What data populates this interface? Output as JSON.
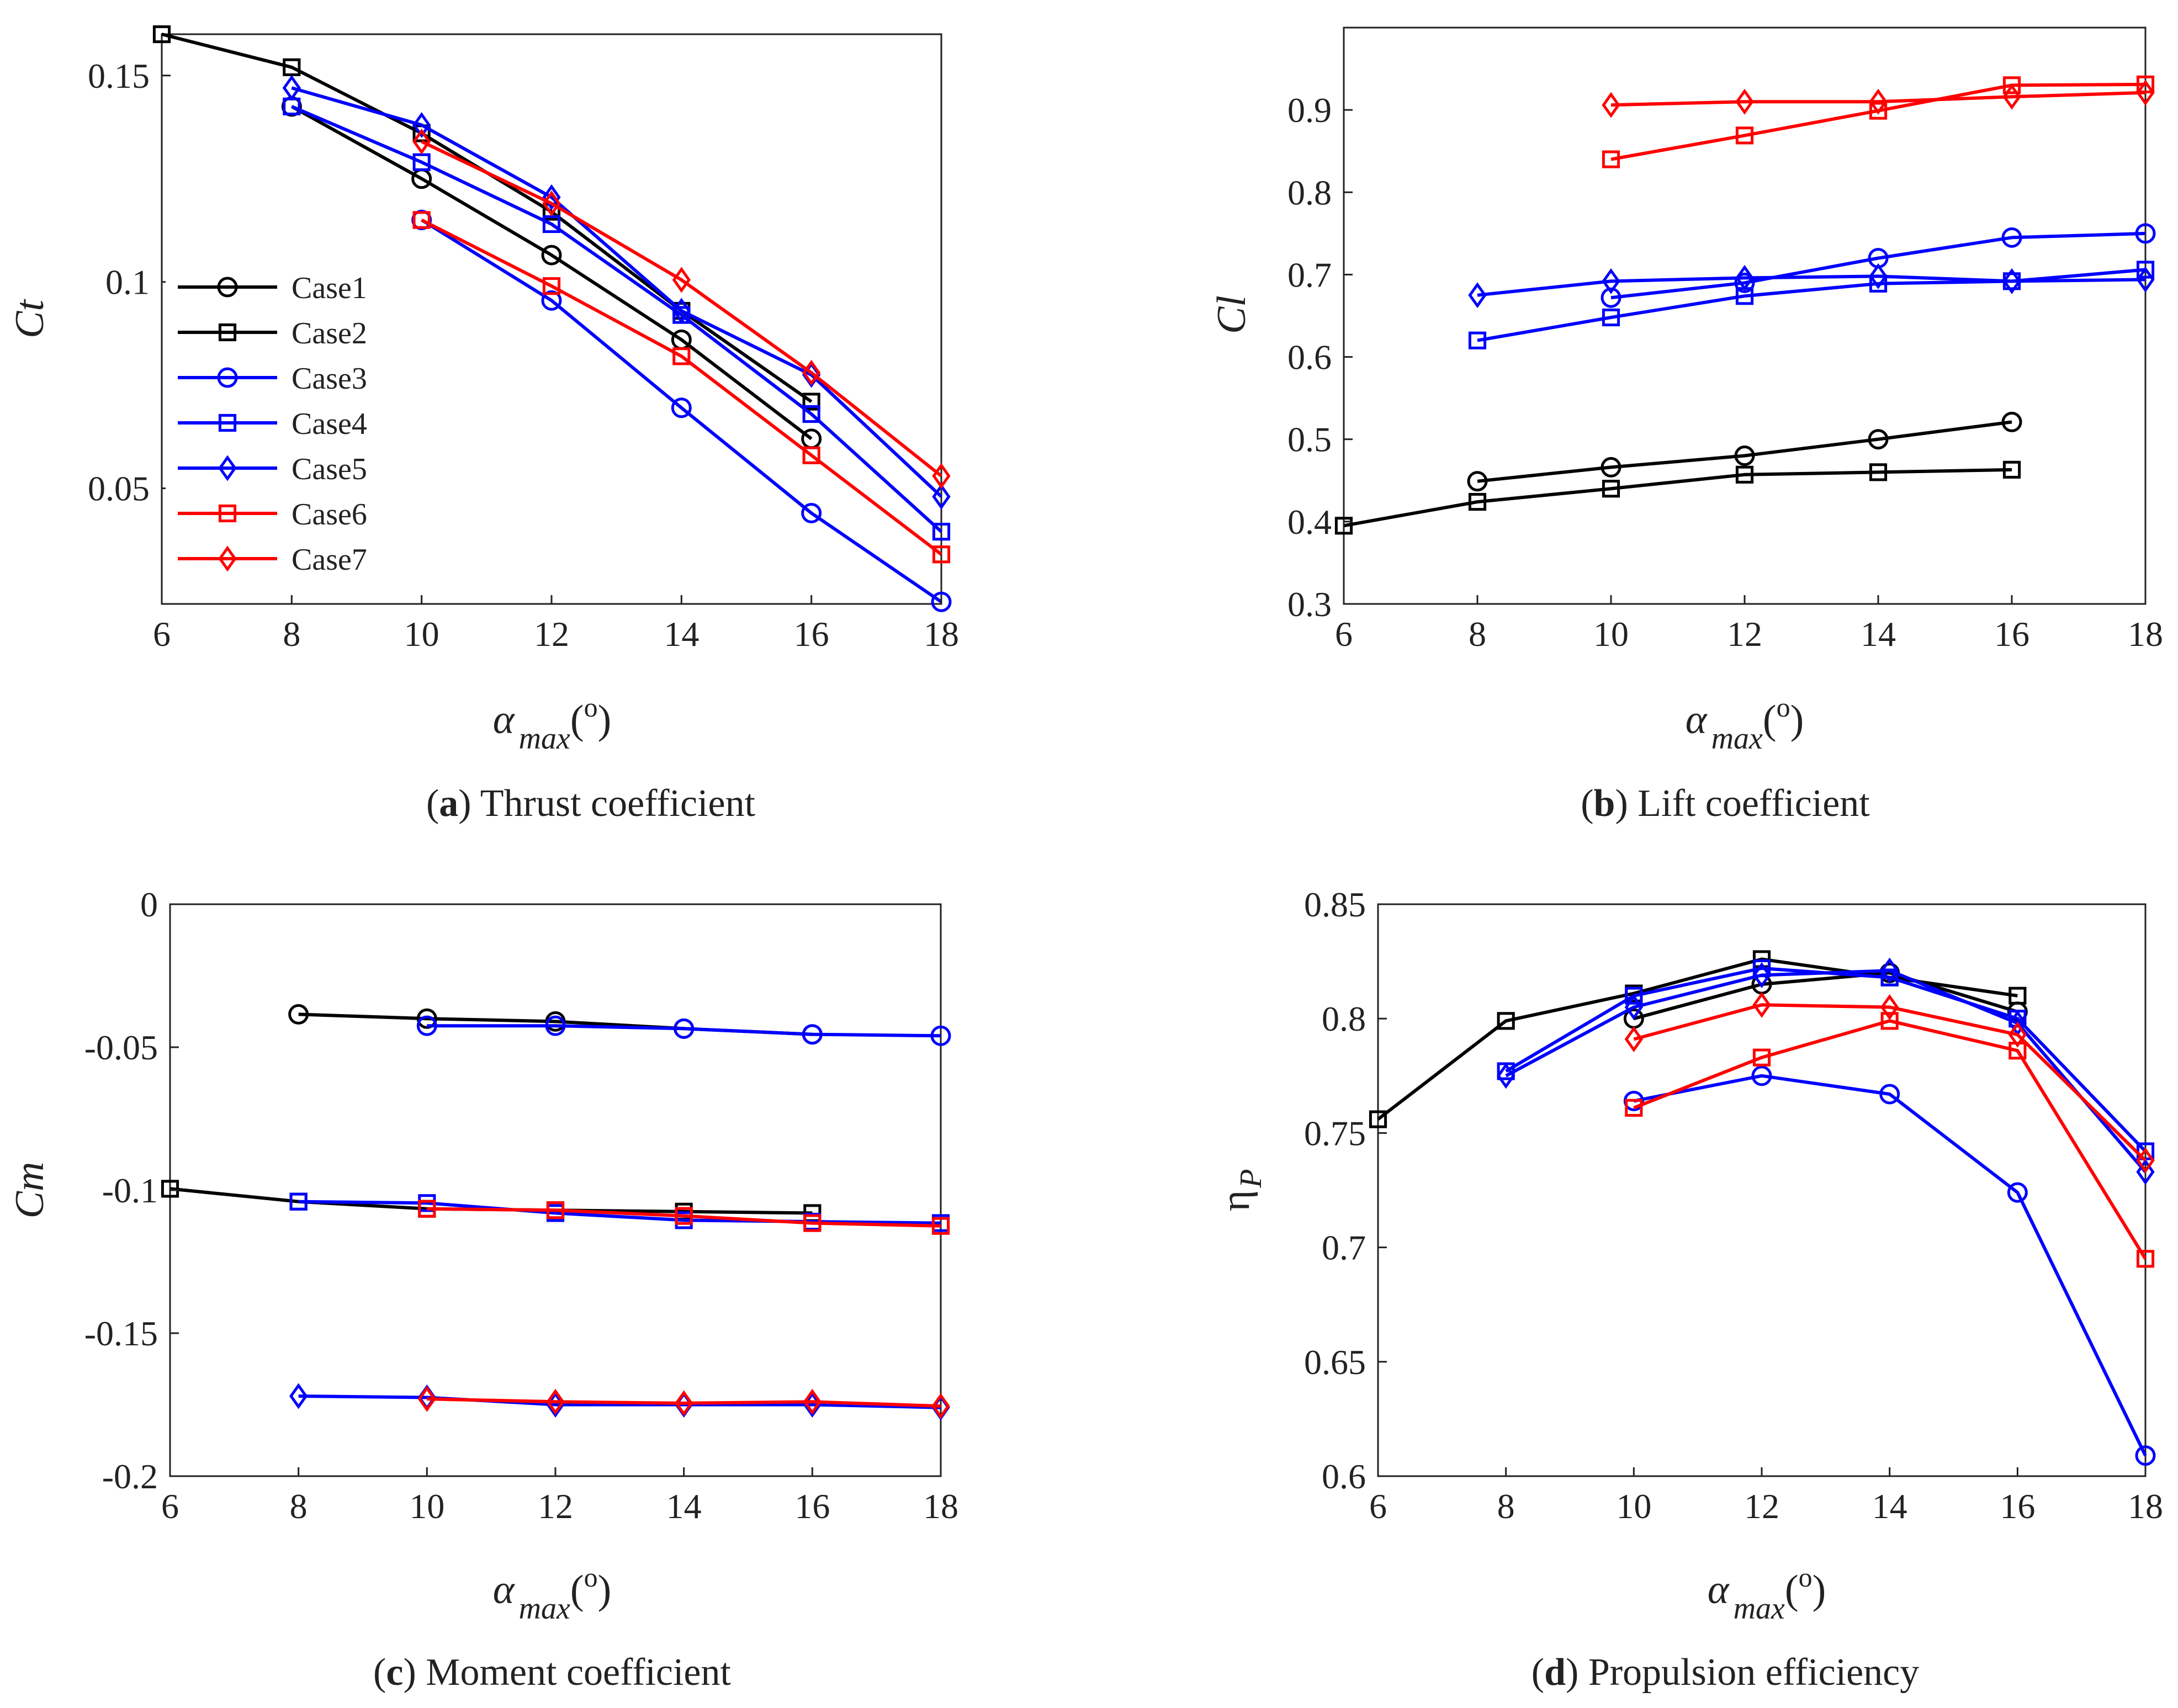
{
  "panels": [
    {
      "id": "a",
      "caption_letter": "a",
      "caption_text": " Thrust coefficient",
      "ylabel": "Ct",
      "xlabel_main": "α",
      "xlabel_sub": "max",
      "xlabel_paren": "(",
      "xlabel_sup": "o",
      "xlabel_close": ")",
      "xticks": [
        "6",
        "8",
        "10",
        "12",
        "14",
        "16",
        "18"
      ],
      "yticks": [
        "0.05",
        "0.1",
        "0.15"
      ]
    },
    {
      "id": "b",
      "caption_letter": "b",
      "caption_text": " Lift coefficient",
      "ylabel": "Cl",
      "xlabel_main": "α",
      "xlabel_sub": "max",
      "xlabel_paren": "(",
      "xlabel_sup": "o",
      "xlabel_close": ")",
      "xticks": [
        "6",
        "8",
        "10",
        "12",
        "14",
        "16",
        "18"
      ],
      "yticks": [
        "0.3",
        "0.4",
        "0.5",
        "0.6",
        "0.7",
        "0.8",
        "0.9"
      ]
    },
    {
      "id": "c",
      "caption_letter": "c",
      "caption_text": " Moment coefficient",
      "ylabel": "Cm",
      "xlabel_main": "α",
      "xlabel_sub": "max",
      "xlabel_paren": "(",
      "xlabel_sup": "o",
      "xlabel_close": ")",
      "xticks": [
        "6",
        "8",
        "10",
        "12",
        "14",
        "16",
        "18"
      ],
      "yticks": [
        "-0.2",
        "-0.15",
        "-0.1",
        "-0.05",
        "0"
      ]
    },
    {
      "id": "d",
      "caption_letter": "d",
      "caption_text": " Propulsion efficiency",
      "ylabel": "η",
      "ylabel_sub": "P",
      "xlabel_main": "α",
      "xlabel_sub": "max",
      "xlabel_paren": "(",
      "xlabel_sup": "o",
      "xlabel_close": ")",
      "xticks": [
        "6",
        "8",
        "10",
        "12",
        "14",
        "16",
        "18"
      ],
      "yticks": [
        "0.6",
        "0.65",
        "0.7",
        "0.75",
        "0.8",
        "0.85"
      ]
    }
  ],
  "legend": {
    "panel": "a",
    "entries": [
      "Case1",
      "Case2",
      "Case3",
      "Case4",
      "Case5",
      "Case6",
      "Case7"
    ]
  },
  "colors": {
    "black": "#000000",
    "blue": "#0000ff",
    "red": "#ff0000",
    "axis": "#222222"
  },
  "chart_data": [
    {
      "type": "line",
      "panel": "a",
      "xlabel": "α max (o)",
      "ylabel": "Ct",
      "xlim": [
        6,
        18
      ],
      "ylim": [
        0.022,
        0.16
      ],
      "x": [
        6,
        8,
        10,
        12,
        14,
        16,
        18
      ],
      "series": [
        {
          "name": "Case1",
          "color": "#000000",
          "marker": "circle",
          "x": [
            8,
            10,
            12,
            14,
            16
          ],
          "values": [
            0.1425,
            0.125,
            0.1065,
            0.086,
            0.062
          ]
        },
        {
          "name": "Case2",
          "color": "#000000",
          "marker": "square",
          "x": [
            6,
            8,
            10,
            12,
            14,
            16
          ],
          "values": [
            0.16,
            0.152,
            0.136,
            0.117,
            0.093,
            0.071
          ]
        },
        {
          "name": "Case3",
          "color": "#0000ff",
          "marker": "circle",
          "x": [
            10,
            12,
            14,
            16,
            18
          ],
          "values": [
            0.115,
            0.0955,
            0.0695,
            0.044,
            0.0225
          ]
        },
        {
          "name": "Case4",
          "color": "#0000ff",
          "marker": "square",
          "x": [
            8,
            10,
            12,
            14,
            16,
            18
          ],
          "values": [
            0.1425,
            0.129,
            0.114,
            0.092,
            0.068,
            0.0395
          ]
        },
        {
          "name": "Case5",
          "color": "#0000ff",
          "marker": "diamond",
          "x": [
            8,
            10,
            12,
            14,
            16,
            18
          ],
          "values": [
            0.147,
            0.138,
            0.1205,
            0.093,
            0.0775,
            0.048
          ]
        },
        {
          "name": "Case6",
          "color": "#ff0000",
          "marker": "square",
          "x": [
            10,
            12,
            14,
            16,
            18
          ],
          "values": [
            0.115,
            0.099,
            0.082,
            0.058,
            0.034
          ]
        },
        {
          "name": "Case7",
          "color": "#ff0000",
          "marker": "diamond",
          "x": [
            10,
            12,
            14,
            16,
            18
          ],
          "values": [
            0.134,
            0.119,
            0.1005,
            0.078,
            0.053
          ]
        }
      ]
    },
    {
      "type": "line",
      "panel": "b",
      "xlabel": "α max (o)",
      "ylabel": "Cl",
      "xlim": [
        6,
        18
      ],
      "ylim": [
        0.3,
        1.0
      ],
      "series": [
        {
          "name": "Case1",
          "color": "#000000",
          "marker": "circle",
          "x": [
            8,
            10,
            12,
            14,
            16
          ],
          "values": [
            0.449,
            0.466,
            0.48,
            0.5,
            0.521
          ]
        },
        {
          "name": "Case2",
          "color": "#000000",
          "marker": "square",
          "x": [
            6,
            8,
            10,
            12,
            14,
            16
          ],
          "values": [
            0.395,
            0.424,
            0.44,
            0.457,
            0.46,
            0.463
          ]
        },
        {
          "name": "Case3",
          "color": "#0000ff",
          "marker": "circle",
          "x": [
            10,
            12,
            14,
            16,
            18
          ],
          "values": [
            0.672,
            0.69,
            0.72,
            0.745,
            0.75
          ]
        },
        {
          "name": "Case4",
          "color": "#0000ff",
          "marker": "square",
          "x": [
            8,
            10,
            12,
            14,
            16,
            18
          ],
          "values": [
            0.62,
            0.648,
            0.674,
            0.689,
            0.692,
            0.706
          ]
        },
        {
          "name": "Case5",
          "color": "#0000ff",
          "marker": "diamond",
          "x": [
            8,
            10,
            12,
            14,
            16,
            18
          ],
          "values": [
            0.675,
            0.692,
            0.696,
            0.698,
            0.692,
            0.694
          ]
        },
        {
          "name": "Case6",
          "color": "#ff0000",
          "marker": "square",
          "x": [
            10,
            12,
            14,
            16,
            18
          ],
          "values": [
            0.84,
            0.869,
            0.899,
            0.93,
            0.931
          ]
        },
        {
          "name": "Case7",
          "color": "#ff0000",
          "marker": "diamond",
          "x": [
            10,
            12,
            14,
            16,
            18
          ],
          "values": [
            0.906,
            0.91,
            0.91,
            0.916,
            0.921
          ]
        }
      ]
    },
    {
      "type": "line",
      "panel": "c",
      "xlabel": "α max (o)",
      "ylabel": "Cm",
      "xlim": [
        6,
        18
      ],
      "ylim": [
        -0.2,
        0
      ],
      "series": [
        {
          "name": "Case1",
          "color": "#000000",
          "marker": "circle",
          "x": [
            8,
            10,
            12,
            14,
            16
          ],
          "values": [
            -0.0385,
            -0.04,
            -0.041,
            -0.0435,
            -0.0455
          ]
        },
        {
          "name": "Case2",
          "color": "#000000",
          "marker": "square",
          "x": [
            6,
            8,
            10,
            12,
            14,
            16
          ],
          "values": [
            -0.0995,
            -0.104,
            -0.1065,
            -0.107,
            -0.1075,
            -0.108
          ]
        },
        {
          "name": "Case3",
          "color": "#0000ff",
          "marker": "circle",
          "x": [
            10,
            12,
            14,
            16,
            18
          ],
          "values": [
            -0.0425,
            -0.0425,
            -0.0435,
            -0.0455,
            -0.046
          ]
        },
        {
          "name": "Case4",
          "color": "#0000ff",
          "marker": "square",
          "x": [
            8,
            10,
            12,
            14,
            16,
            18
          ],
          "values": [
            -0.104,
            -0.1045,
            -0.108,
            -0.1105,
            -0.111,
            -0.1115
          ]
        },
        {
          "name": "Case5",
          "color": "#0000ff",
          "marker": "diamond",
          "x": [
            8,
            10,
            12,
            14,
            16,
            18
          ],
          "values": [
            -0.172,
            -0.1725,
            -0.175,
            -0.175,
            -0.175,
            -0.176
          ]
        },
        {
          "name": "Case6",
          "color": "#ff0000",
          "marker": "square",
          "x": [
            10,
            12,
            14,
            16,
            18
          ],
          "values": [
            -0.1065,
            -0.107,
            -0.109,
            -0.1115,
            -0.1125
          ]
        },
        {
          "name": "Case7",
          "color": "#ff0000",
          "marker": "diamond",
          "x": [
            10,
            12,
            14,
            16,
            18
          ],
          "values": [
            -0.173,
            -0.174,
            -0.1745,
            -0.174,
            -0.1755
          ]
        }
      ]
    },
    {
      "type": "line",
      "panel": "d",
      "xlabel": "α max (o)",
      "ylabel": "η P",
      "xlim": [
        6,
        18
      ],
      "ylim": [
        0.6,
        0.85
      ],
      "series": [
        {
          "name": "Case1",
          "color": "#000000",
          "marker": "circle",
          "x": [
            10,
            12,
            14,
            16
          ],
          "values": [
            0.8,
            0.815,
            0.82,
            0.803
          ]
        },
        {
          "name": "Case2",
          "color": "#000000",
          "marker": "square",
          "x": [
            6,
            8,
            10,
            12,
            14,
            16
          ],
          "values": [
            0.756,
            0.799,
            0.811,
            0.826,
            0.818,
            0.81
          ]
        },
        {
          "name": "Case3",
          "color": "#0000ff",
          "marker": "circle",
          "x": [
            10,
            12,
            14,
            16,
            18
          ],
          "values": [
            0.764,
            0.775,
            0.767,
            0.724,
            0.609
          ]
        },
        {
          "name": "Case4",
          "color": "#0000ff",
          "marker": "square",
          "x": [
            8,
            10,
            12,
            14,
            16,
            18
          ],
          "values": [
            0.777,
            0.81,
            0.822,
            0.818,
            0.8,
            0.742
          ]
        },
        {
          "name": "Case5",
          "color": "#0000ff",
          "marker": "diamond",
          "x": [
            8,
            10,
            12,
            14,
            16,
            18
          ],
          "values": [
            0.775,
            0.805,
            0.819,
            0.821,
            0.798,
            0.733
          ]
        },
        {
          "name": "Case6",
          "color": "#ff0000",
          "marker": "square",
          "x": [
            10,
            12,
            14,
            16,
            18
          ],
          "values": [
            0.761,
            0.783,
            0.799,
            0.786,
            0.695
          ]
        },
        {
          "name": "Case7",
          "color": "#ff0000",
          "marker": "diamond",
          "x": [
            10,
            12,
            14,
            16,
            18
          ],
          "values": [
            0.791,
            0.806,
            0.805,
            0.793,
            0.738
          ]
        }
      ]
    }
  ]
}
